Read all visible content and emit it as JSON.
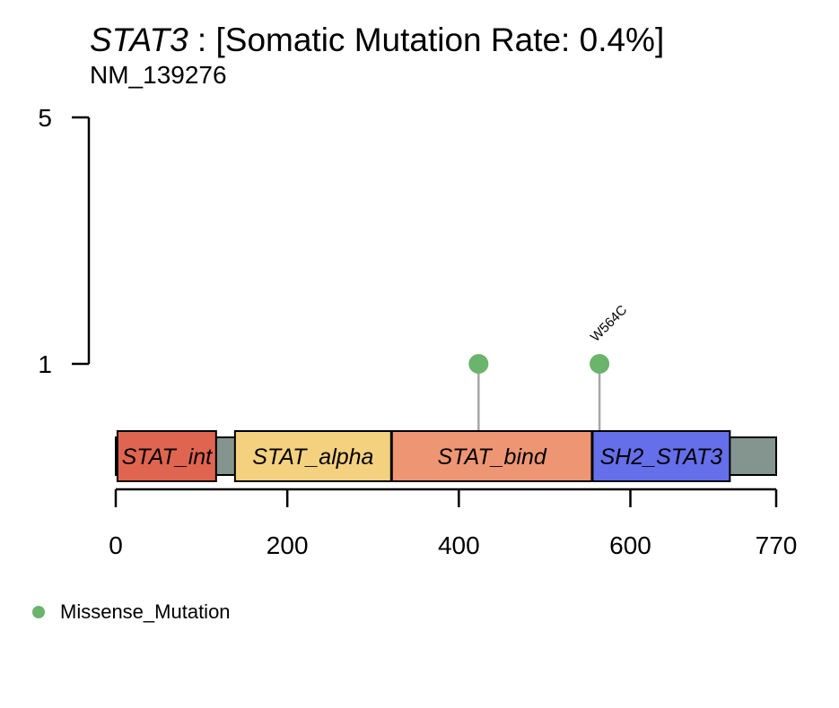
{
  "title": {
    "gene": "STAT3",
    "rest": " : [Somatic Mutation Rate: 0.4%]",
    "subtitle": "NM_139276"
  },
  "colors": {
    "protein_backbone": "#84948F",
    "lollipop_stem": "#A6A6A6",
    "axis": "#000000"
  },
  "chart_data": {
    "type": "lollipop",
    "protein_length": 770,
    "x_ticks": [
      0,
      200,
      400,
      600,
      770
    ],
    "y_ticks": [
      1,
      5
    ],
    "ylim": [
      0,
      5
    ],
    "domains": [
      {
        "name": "STAT_int",
        "start": 2,
        "end": 117,
        "color": "#E06550"
      },
      {
        "name": "STAT_alpha",
        "start": 139,
        "end": 321,
        "color": "#F4D17F"
      },
      {
        "name": "STAT_bind",
        "start": 322,
        "end": 555,
        "color": "#EE9673"
      },
      {
        "name": "SH2_STAT3",
        "start": 556,
        "end": 716,
        "color": "#646FE9"
      }
    ],
    "mutations": [
      {
        "position": 423,
        "count": 1,
        "type": "Missense_Mutation",
        "label": ""
      },
      {
        "position": 564,
        "count": 1,
        "type": "Missense_Mutation",
        "label": "W564C"
      }
    ],
    "legend": [
      {
        "label": "Missense_Mutation",
        "color": "#6AB46C"
      }
    ]
  }
}
